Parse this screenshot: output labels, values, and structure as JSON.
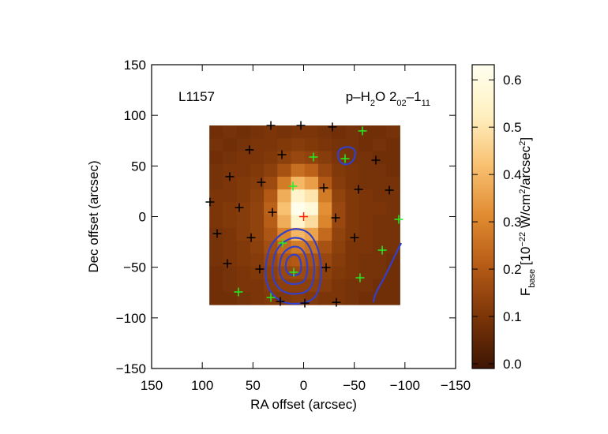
{
  "chart_data": {
    "type": "image",
    "annotations": [
      {
        "parts": [
          {
            "text": "L1157",
            "shift": "none"
          }
        ]
      },
      {
        "parts": [
          {
            "text": "p–H",
            "shift": "none"
          },
          {
            "text": "2",
            "shift": "sub"
          },
          {
            "text": "O 2",
            "shift": "none"
          },
          {
            "text": "02",
            "shift": "sub"
          },
          {
            "text": "–1",
            "shift": "none"
          },
          {
            "text": "11",
            "shift": "sub"
          }
        ]
      }
    ],
    "xlabel": "RA offset (arcsec)",
    "ylabel": "Dec offset (arcsec)",
    "xlim": [
      150,
      -150
    ],
    "ylim": [
      -150,
      150
    ],
    "xticks": [
      150,
      100,
      50,
      0,
      {
        "value": -50,
        "label": "−50"
      },
      {
        "value": -100,
        "label": "−100"
      },
      {
        "value": -150,
        "label": "−150"
      }
    ],
    "yticks": [
      150,
      100,
      50,
      0,
      {
        "value": -50,
        "label": "−50"
      },
      {
        "value": -100,
        "label": "−100"
      },
      {
        "value": -150,
        "label": "−150"
      }
    ],
    "colorbar": {
      "label_parts": [
        {
          "text": "F",
          "shift": "none"
        },
        {
          "text": "base",
          "shift": "sub"
        },
        {
          "text": " [10",
          "shift": "none"
        },
        {
          "text": "−22",
          "shift": "sup"
        },
        {
          "text": " W/cm",
          "shift": "none"
        },
        {
          "text": "2",
          "shift": "sup"
        },
        {
          "text": "/arcsec",
          "shift": "none"
        },
        {
          "text": "2",
          "shift": "sup"
        },
        {
          "text": "]",
          "shift": "none"
        }
      ],
      "clim": [
        -0.01,
        0.632
      ],
      "ticks": [
        {
          "value": 0,
          "label": "0.0"
        },
        0.1,
        0.2,
        0.3,
        0.4,
        0.5,
        0.6
      ],
      "colormap": [
        "#3d1503",
        "#7a3408",
        "#b45a16",
        "#e08a30",
        "#f8c070",
        "#fff0c0",
        "#fffff0"
      ]
    },
    "image": {
      "extent": [
        93,
        -95,
        -87,
        90
      ],
      "values": [
        [
          0.08,
          0.09,
          0.08,
          0.09,
          0.1,
          0.09,
          0.1,
          0.1,
          0.09,
          0.08,
          0.09,
          0.08,
          0.08,
          0.09
        ],
        [
          0.09,
          0.08,
          0.09,
          0.1,
          0.1,
          0.11,
          0.12,
          0.11,
          0.1,
          0.09,
          0.09,
          0.08,
          0.09,
          0.08
        ],
        [
          0.08,
          0.09,
          0.1,
          0.1,
          0.11,
          0.13,
          0.15,
          0.14,
          0.12,
          0.1,
          0.09,
          0.09,
          0.08,
          0.08
        ],
        [
          0.09,
          0.1,
          0.1,
          0.11,
          0.13,
          0.18,
          0.25,
          0.22,
          0.15,
          0.11,
          0.1,
          0.09,
          0.09,
          0.08
        ],
        [
          0.09,
          0.1,
          0.11,
          0.12,
          0.16,
          0.28,
          0.4,
          0.35,
          0.2,
          0.12,
          0.1,
          0.09,
          0.09,
          0.09
        ],
        [
          0.1,
          0.1,
          0.11,
          0.13,
          0.2,
          0.38,
          0.55,
          0.5,
          0.28,
          0.14,
          0.11,
          0.1,
          0.09,
          0.09
        ],
        [
          0.1,
          0.11,
          0.12,
          0.14,
          0.22,
          0.42,
          0.62,
          0.58,
          0.32,
          0.15,
          0.11,
          0.1,
          0.1,
          0.09
        ],
        [
          0.1,
          0.11,
          0.12,
          0.14,
          0.21,
          0.38,
          0.55,
          0.48,
          0.3,
          0.15,
          0.11,
          0.1,
          0.09,
          0.09
        ],
        [
          0.09,
          0.1,
          0.12,
          0.14,
          0.19,
          0.3,
          0.4,
          0.36,
          0.24,
          0.14,
          0.11,
          0.1,
          0.09,
          0.09
        ],
        [
          0.09,
          0.1,
          0.11,
          0.13,
          0.17,
          0.24,
          0.28,
          0.25,
          0.18,
          0.13,
          0.1,
          0.1,
          0.09,
          0.09
        ],
        [
          0.09,
          0.1,
          0.11,
          0.12,
          0.15,
          0.19,
          0.2,
          0.18,
          0.15,
          0.12,
          0.1,
          0.09,
          0.09,
          0.08
        ],
        [
          0.08,
          0.09,
          0.1,
          0.11,
          0.13,
          0.15,
          0.16,
          0.15,
          0.13,
          0.11,
          0.1,
          0.09,
          0.09,
          0.08
        ],
        [
          0.08,
          0.09,
          0.1,
          0.1,
          0.12,
          0.13,
          0.13,
          0.13,
          0.12,
          0.1,
          0.09,
          0.09,
          0.08,
          0.08
        ],
        [
          0.08,
          0.08,
          0.09,
          0.1,
          0.11,
          0.11,
          0.12,
          0.11,
          0.1,
          0.1,
          0.09,
          0.08,
          0.08,
          0.08
        ]
      ]
    },
    "contours": {
      "color": "#3340c8",
      "lines": [
        {
          "closed": true,
          "x": [
            26.9,
            9.7,
            -8.2,
            -18.3,
            -16.0,
            -4.3,
            23.0,
            38.6,
            36.2
          ],
          "y": [
            -19.9,
            -10.5,
            -16.0,
            -43.3,
            -74.4,
            -86.1,
            -86.1,
            -66.6,
            -35.5
          ]
        },
        {
          "closed": true,
          "x": [
            22.7,
            9.8,
            -3.7,
            -11.2,
            -9.5,
            -0.7,
            19.8,
            31.5,
            29.7
          ],
          "y": [
            -26.7,
            -19.6,
            -23.8,
            -44.2,
            -67.6,
            -76.3,
            -76.3,
            -61.7,
            -38.4
          ]
        },
        {
          "closed": true,
          "x": [
            18.5,
            9.9,
            0.9,
            -4.2,
            -3.0,
            2.9,
            16.5,
            24.3,
            23.1
          ],
          "y": [
            -33.5,
            -28.8,
            -31.5,
            -45.2,
            -60.7,
            -66.6,
            -66.6,
            -56.8,
            -41.3
          ]
        },
        {
          "closed": true,
          "x": [
            14.7,
            9.9,
            4.9,
            2.1,
            2.7,
            6.0,
            13.6,
            17.9,
            17.3
          ],
          "y": [
            -39.7,
            -37.1,
            -38.6,
            -46.2,
            -54.7,
            -58.0,
            -58.0,
            -52.6,
            -43.9
          ]
        },
        {
          "closed": true,
          "x": [
            -33.9,
            -43.3,
            -51.8,
            -49.5,
            -40.1,
            -33.9
          ],
          "y": [
            65.9,
            69.8,
            65.9,
            54.2,
            50.3,
            56.5
          ]
        },
        {
          "closed": false,
          "x": [
            -96.3,
            -87.7,
            -79.9,
            -70.5,
            -69.0
          ],
          "y": [
            -26.1,
            -43.3,
            -60.4,
            -76.0,
            -84.6
          ]
        }
      ]
    },
    "markers": [
      {
        "color": "#000000",
        "x": [
          32.3,
          2.7,
          -28.4,
          53.4,
          21.4,
          -71.3,
          72.9,
          41.7,
          -19.9,
          -54.2,
          -84.6,
          92.4,
          63.5,
          30.8,
          -31.6,
          85.3,
          51.8,
          -50.3,
          75.2,
          43.3,
          -22.2,
          -1.2,
          23.0,
          -32.3
        ],
        "y": [
          90.0,
          90.0,
          88.5,
          65.9,
          61.2,
          55.7,
          39.4,
          33.9,
          28.4,
          26.9,
          26.1,
          14.4,
          9.0,
          4.3,
          -1.2,
          -16.8,
          -20.7,
          -20.7,
          -46.4,
          -51.8,
          -50.3,
          -85.4,
          -83.8,
          -84.6
        ]
      },
      {
        "color": "#22ee22",
        "x": [
          -58.1,
          -9.7,
          -40.9,
          10.5,
          -93.9,
          -77.6,
          20.7,
          9.7,
          -55.7,
          64.3,
          32.3
        ],
        "y": [
          84.6,
          58.8,
          57.3,
          30.0,
          -2.7,
          -33.1,
          -26.1,
          -54.9,
          -60.4,
          -74.4,
          -79.9
        ]
      },
      {
        "color": "#ff2200",
        "x": [
          0
        ],
        "y": [
          0
        ]
      }
    ]
  }
}
